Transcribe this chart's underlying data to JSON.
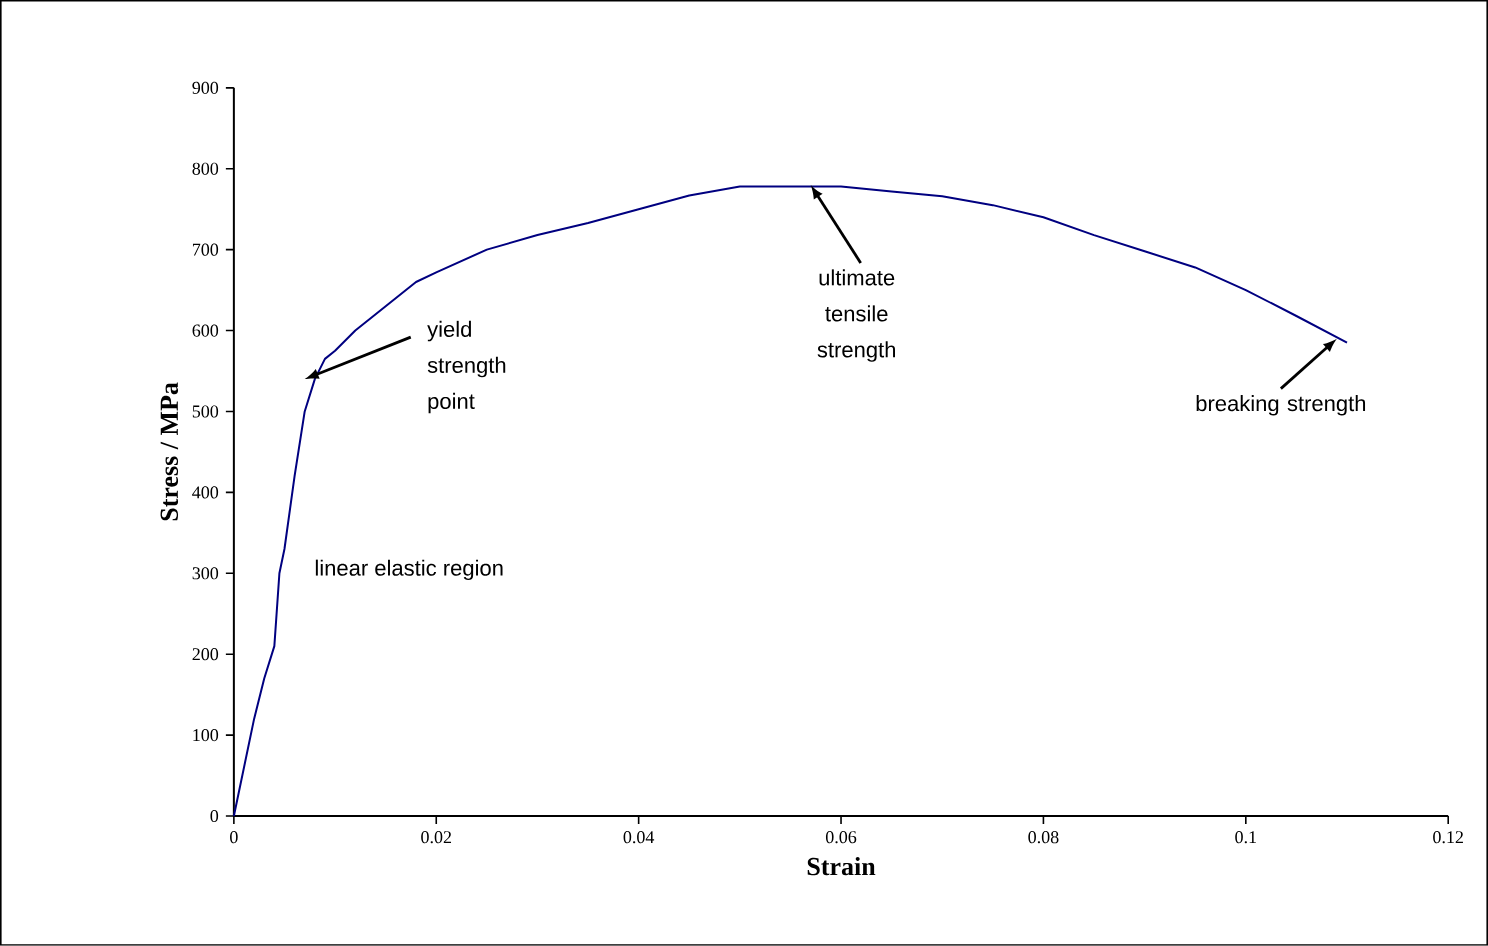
{
  "chart_data": {
    "type": "line",
    "xlabel": "Strain",
    "ylabel": "Stress / MPa",
    "xlim": [
      0,
      0.12
    ],
    "xticks": [
      0,
      0.02,
      0.04,
      0.06,
      0.08,
      0.1,
      0.12
    ],
    "ylim": [
      0,
      900
    ],
    "yticks": [
      0,
      100,
      200,
      300,
      400,
      500,
      600,
      700,
      800,
      900
    ],
    "grid": false,
    "marker": "none",
    "line_style": "solid",
    "series": [
      {
        "color": "#000080",
        "x": [
          0,
          0.001,
          0.002,
          0.003,
          0.004,
          0.0045,
          0.005,
          0.006,
          0.007,
          0.008,
          0.009,
          0.01,
          0.012,
          0.015,
          0.018,
          0.02,
          0.025,
          0.03,
          0.035,
          0.04,
          0.045,
          0.05,
          0.06,
          0.065,
          0.07,
          0.075,
          0.08,
          0.085,
          0.09,
          0.095,
          0.1,
          0.105,
          0.11
        ],
        "values": [
          0,
          60,
          120,
          170,
          210,
          300,
          330,
          420,
          500,
          540,
          565,
          575,
          600,
          630,
          660,
          672,
          700,
          718,
          733,
          750,
          767,
          778,
          778,
          772,
          766,
          755,
          740,
          718,
          698,
          678,
          650,
          618,
          585
        ]
      }
    ],
    "annotations": [
      {
        "text": "yield strength point",
        "x": 0.007,
        "y": 540
      },
      {
        "text": "ultimate tensile strength",
        "x": 0.057,
        "y": 780
      },
      {
        "text": "breaking strength",
        "x": 0.109,
        "y": 590
      },
      "linear elastic region"
    ]
  }
}
